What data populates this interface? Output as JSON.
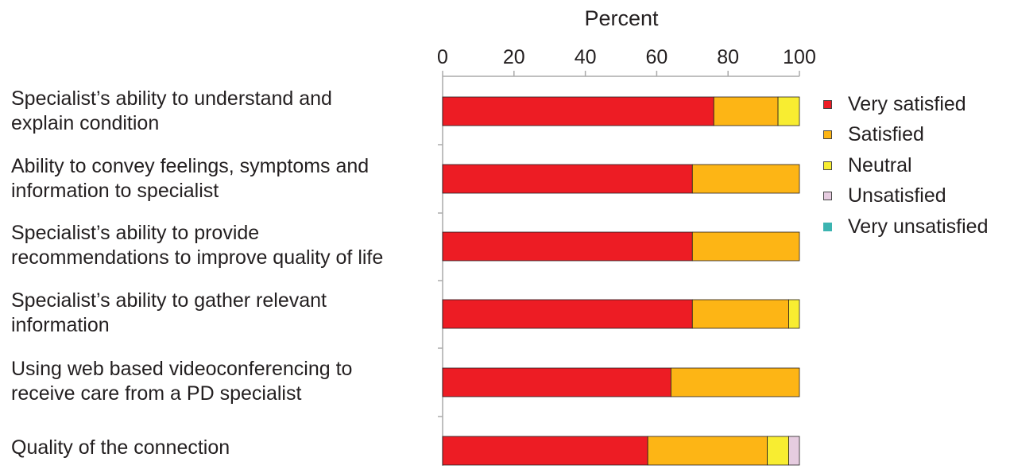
{
  "chart_data": {
    "type": "bar",
    "orientation": "horizontal",
    "stacked": true,
    "title": "",
    "xlabel": "Percent",
    "ylabel": "",
    "xlim": [
      0,
      100
    ],
    "xticks": [
      0,
      20,
      40,
      60,
      80,
      100
    ],
    "categories": [
      "Specialist’s ability to understand and\nexplain condition",
      "Ability to convey feelings, symptoms and\ninformation to specialist",
      "Specialist’s ability to provide\nrecommendations to improve quality of life",
      "Specialist’s ability to gather relevant\ninformation",
      "Using web based videoconferencing to\nreceive care from a PD specialist",
      "Quality of the connection"
    ],
    "series": [
      {
        "name": "Very satisfied",
        "color": "#ed1c24",
        "values": [
          76,
          70,
          70,
          70,
          64,
          57.5
        ]
      },
      {
        "name": "Satisfied",
        "color": "#fdb515",
        "values": [
          18,
          30,
          30,
          27,
          36,
          33.5
        ]
      },
      {
        "name": "Neutral",
        "color": "#f8ed31",
        "values": [
          6,
          0,
          0,
          3,
          0,
          6
        ]
      },
      {
        "name": "Unsatisfied",
        "color": "#e6cce0",
        "values": [
          0,
          0,
          0,
          0,
          0,
          3
        ]
      },
      {
        "name": "Very unsatisfied",
        "color": "#3cb4b1",
        "values": [
          0,
          0,
          0,
          0,
          0,
          0
        ]
      }
    ],
    "legend_position": "right",
    "grid": false
  }
}
